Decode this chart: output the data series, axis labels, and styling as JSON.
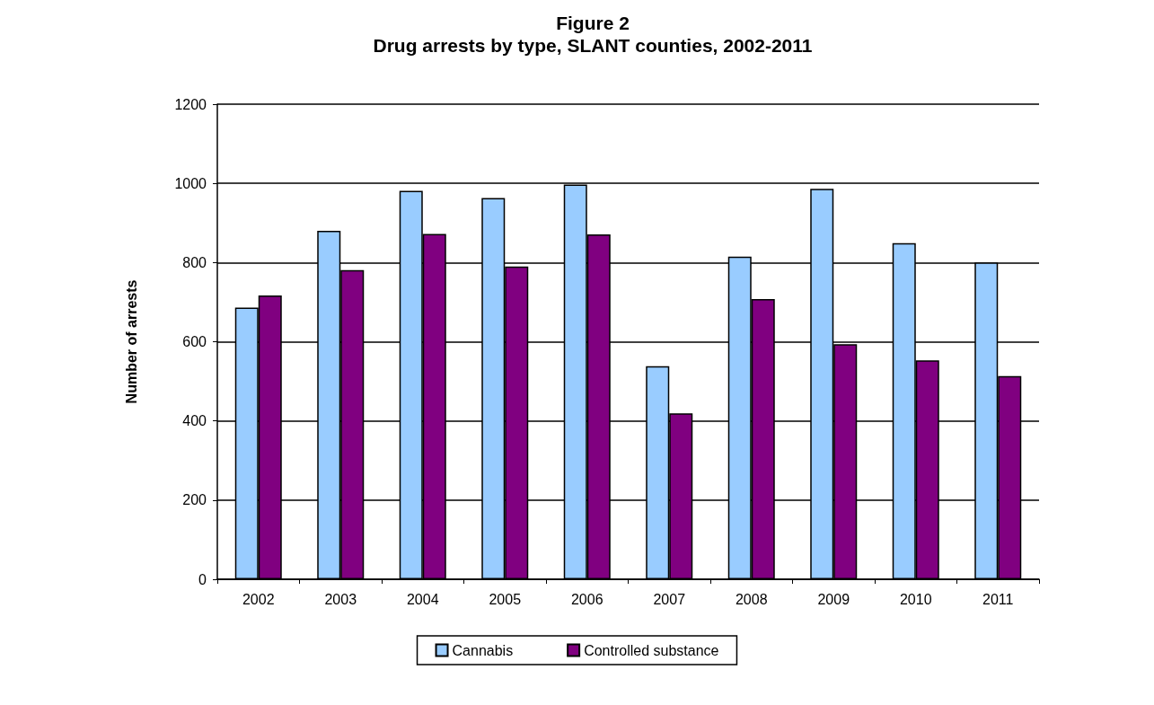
{
  "chart_data": {
    "type": "bar",
    "title": "Figure 2\nDrug arrests by type, SLANT counties, 2002-2011",
    "ylabel": "Number of arrests",
    "categories": [
      "2002",
      "2003",
      "2004",
      "2005",
      "2006",
      "2007",
      "2008",
      "2009",
      "2010",
      "2011"
    ],
    "series": [
      {
        "name": "Cannabis",
        "color": "#99ccff",
        "values": [
          686,
          880,
          981,
          963,
          997,
          538,
          815,
          986,
          849,
          800
        ]
      },
      {
        "name": "Controlled substance",
        "color": "#800080",
        "values": [
          717,
          781,
          872,
          790,
          871,
          419,
          708,
          594,
          553,
          513
        ]
      }
    ],
    "ylim": [
      0,
      1200
    ],
    "yticks": [
      0,
      200,
      400,
      600,
      800,
      1000,
      1200
    ],
    "grid": "y",
    "legend": "bottom"
  }
}
